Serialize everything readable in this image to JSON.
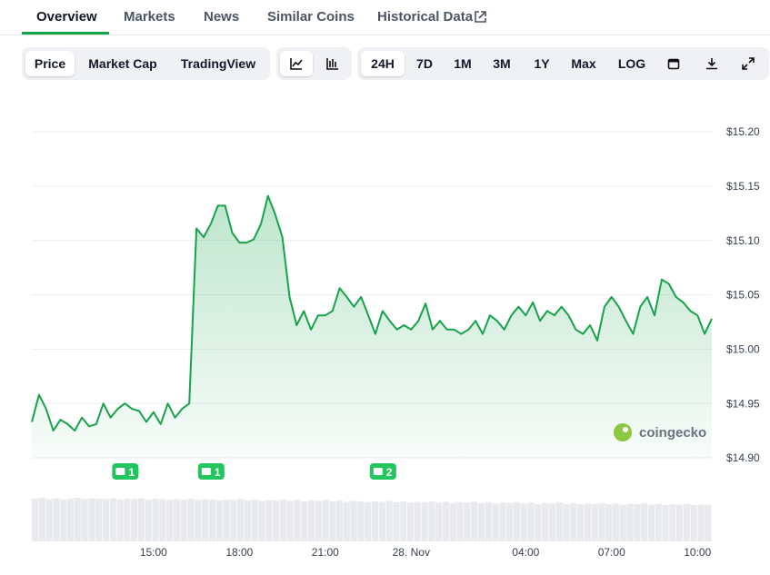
{
  "tabs": [
    "Overview",
    "Markets",
    "News",
    "Similar Coins",
    "Historical Data"
  ],
  "toolbar": {
    "views": [
      "Price",
      "Market Cap",
      "TradingView"
    ],
    "ranges": [
      "24H",
      "7D",
      "1M",
      "3M",
      "1Y",
      "Max",
      "LOG"
    ]
  },
  "watermark": "coingecko",
  "chart_data": {
    "type": "line",
    "categories": [
      null,
      null,
      null,
      null,
      null,
      null,
      null,
      null,
      null,
      null,
      null,
      null,
      null,
      null,
      null,
      null,
      null,
      "15:00",
      null,
      null,
      null,
      null,
      null,
      null,
      null,
      null,
      null,
      null,
      null,
      "18:00",
      null,
      null,
      null,
      null,
      null,
      null,
      null,
      null,
      null,
      null,
      null,
      "21:00",
      null,
      null,
      null,
      null,
      null,
      null,
      null,
      null,
      null,
      null,
      null,
      "28. Nov",
      null,
      null,
      null,
      null,
      null,
      null,
      null,
      null,
      null,
      null,
      null,
      null,
      null,
      null,
      null,
      "04:00",
      null,
      null,
      null,
      null,
      null,
      null,
      null,
      null,
      null,
      null,
      null,
      "07:00",
      null,
      null,
      null,
      null,
      null,
      null,
      null,
      null,
      null,
      null,
      null,
      "10:00",
      null,
      null
    ],
    "values": [
      14.933,
      14.958,
      14.945,
      14.925,
      14.935,
      14.931,
      14.925,
      14.937,
      14.929,
      14.931,
      14.95,
      14.937,
      14.945,
      14.95,
      14.945,
      14.943,
      14.933,
      14.942,
      14.931,
      14.95,
      14.937,
      14.945,
      14.95,
      15.111,
      15.103,
      15.115,
      15.132,
      15.132,
      15.107,
      15.098,
      15.098,
      15.101,
      15.115,
      15.141,
      15.124,
      15.103,
      15.048,
      15.022,
      15.035,
      15.018,
      15.031,
      15.031,
      15.035,
      15.056,
      15.048,
      15.039,
      15.048,
      15.031,
      15.014,
      15.035,
      15.026,
      15.018,
      15.022,
      15.018,
      15.026,
      15.042,
      15.018,
      15.026,
      15.018,
      15.018,
      15.014,
      15.018,
      15.026,
      15.014,
      15.031,
      15.026,
      15.018,
      15.031,
      15.039,
      15.031,
      15.043,
      15.026,
      15.035,
      15.031,
      15.039,
      15.031,
      15.018,
      15.014,
      15.022,
      15.008,
      15.039,
      15.048,
      15.039,
      15.026,
      15.014,
      15.039,
      15.048,
      15.031,
      15.064,
      15.06,
      15.048,
      15.043,
      15.035,
      15.031,
      15.014,
      15.028
    ],
    "color": "#16a34a",
    "volume": [
      98,
      100,
      97,
      99,
      96,
      98,
      100,
      97,
      99,
      98,
      97,
      99,
      96,
      98,
      97,
      99,
      96,
      98,
      97,
      95,
      97,
      96,
      98,
      95,
      97,
      96,
      94,
      96,
      95,
      97,
      94,
      96,
      93,
      95,
      94,
      96,
      93,
      95,
      92,
      94,
      93,
      95,
      92,
      94,
      91,
      93,
      92,
      90,
      92,
      91,
      93,
      90,
      92,
      89,
      91,
      90,
      92,
      89,
      91,
      88,
      90,
      89,
      91,
      88,
      90,
      87,
      89,
      88,
      90,
      87,
      89,
      86,
      88,
      87,
      89,
      86,
      88,
      85,
      87,
      86,
      88,
      85,
      87,
      84,
      86,
      85,
      87,
      84,
      86,
      83,
      85,
      84,
      86,
      83,
      85,
      84
    ],
    "events": {
      "positions": [
        13,
        25,
        49
      ],
      "counts": [
        1,
        1,
        2
      ]
    },
    "ylim": [
      14.9,
      15.2
    ],
    "yticks": [
      {
        "value": 14.9,
        "label": "$14.90"
      },
      {
        "value": 14.95,
        "label": "$14.95"
      },
      {
        "value": 15.0,
        "label": "$15.00"
      },
      {
        "value": 15.05,
        "label": "$15.05"
      },
      {
        "value": 15.1,
        "label": "$15.10"
      },
      {
        "value": 15.15,
        "label": "$15.15"
      },
      {
        "value": 15.2,
        "label": "$15.20"
      }
    ],
    "grid": true
  }
}
